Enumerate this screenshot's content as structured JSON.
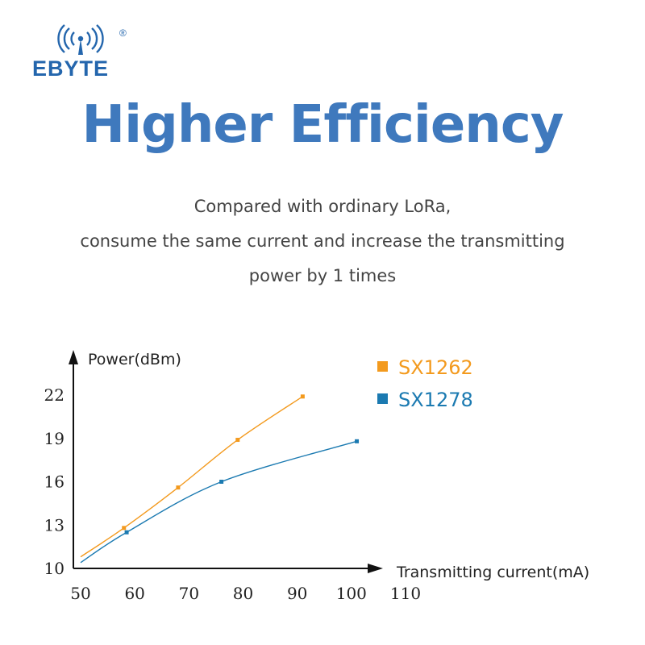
{
  "brand": {
    "name": "EBYTE",
    "registered": "®",
    "color": "#2466ad"
  },
  "headline": "Higher Efficiency",
  "subtitle": [
    "Compared with ordinary LoRa,",
    "consume the same current and increase the transmitting",
    "power by 1 times"
  ],
  "chart_data": {
    "type": "line",
    "xlabel": "Transmitting current(mA)",
    "ylabel": "Power(dBm)",
    "xticks": [
      50,
      60,
      70,
      80,
      90,
      100,
      110
    ],
    "yticks": [
      10,
      13,
      16,
      19,
      22
    ],
    "xlim": [
      50,
      110
    ],
    "ylim": [
      10,
      22
    ],
    "grid": false,
    "legend_position": "top-right",
    "series": [
      {
        "name": "SX1262",
        "color": "#f39a1e",
        "points": [
          [
            50,
            10.8
          ],
          [
            58,
            12.8
          ],
          [
            68,
            15.6
          ],
          [
            79,
            18.9
          ],
          [
            91,
            21.9
          ]
        ]
      },
      {
        "name": "SX1278",
        "color": "#1b7ab1",
        "points": [
          [
            50,
            10.4
          ],
          [
            58.5,
            12.5
          ],
          [
            76,
            16.0
          ],
          [
            101,
            18.8
          ]
        ]
      }
    ]
  }
}
